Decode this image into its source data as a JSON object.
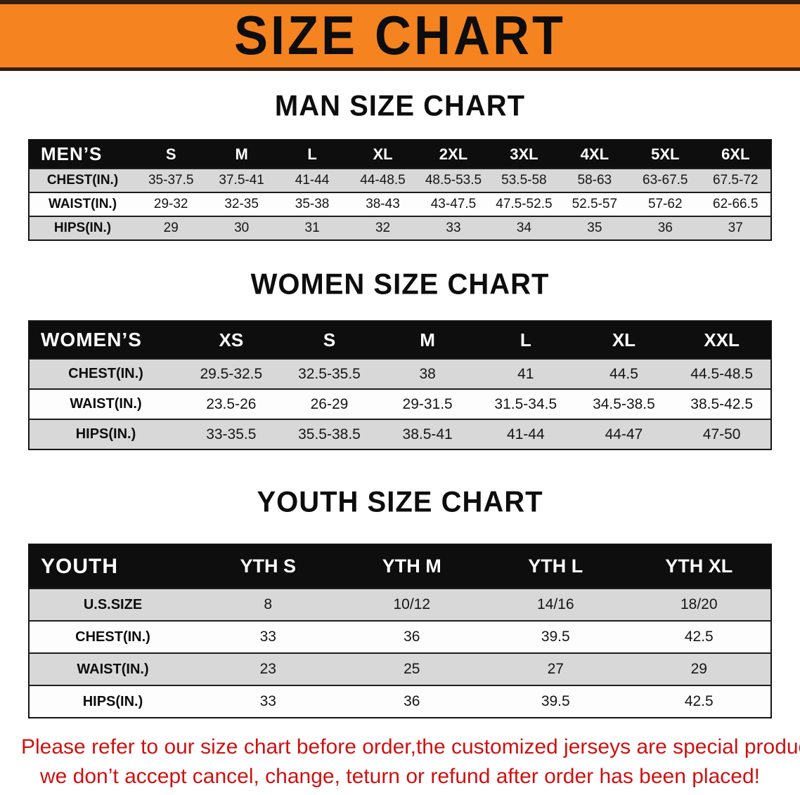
{
  "banner": {
    "title": "SIZE CHART",
    "bg_color": "#f5831f",
    "border_color": "#32200c",
    "text_color": "#0d0d0d"
  },
  "colors": {
    "table_header_bg": "#0e0e0e",
    "table_header_text": "#ffffff",
    "stripe_row_bg": "#d8d8d8",
    "plain_row_bg": "#fdfdfd",
    "disclaimer_text": "#cf1110"
  },
  "sections": [
    {
      "kind": "men",
      "heading": "MAN SIZE CHART",
      "table": {
        "header_label": "MEN’S",
        "columns": [
          "S",
          "M",
          "L",
          "XL",
          "2XL",
          "3XL",
          "4XL",
          "5XL",
          "6XL"
        ],
        "rows": [
          {
            "label": "CHEST(IN.)",
            "values": [
              "35-37.5",
              "37.5-41",
              "41-44",
              "44-48.5",
              "48.5-53.5",
              "53.5-58",
              "58-63",
              "63-67.5",
              "67.5-72"
            ]
          },
          {
            "label": "WAIST(IN.)",
            "values": [
              "29-32",
              "32-35",
              "35-38",
              "38-43",
              "43-47.5",
              "47.5-52.5",
              "52.5-57",
              "57-62",
              "62-66.5"
            ]
          },
          {
            "label": "HIPS(IN.)",
            "values": [
              "29",
              "30",
              "31",
              "32",
              "33",
              "34",
              "35",
              "36",
              "37"
            ]
          }
        ]
      }
    },
    {
      "kind": "women",
      "heading": "WOMEN SIZE CHART",
      "table": {
        "header_label": "WOMEN’S",
        "columns": [
          "XS",
          "S",
          "M",
          "L",
          "XL",
          "XXL"
        ],
        "rows": [
          {
            "label": "CHEST(IN.)",
            "values": [
              "29.5-32.5",
              "32.5-35.5",
              "38",
              "41",
              "44.5",
              "44.5-48.5"
            ]
          },
          {
            "label": "WAIST(IN.)",
            "values": [
              "23.5-26",
              "26-29",
              "29-31.5",
              "31.5-34.5",
              "34.5-38.5",
              "38.5-42.5"
            ]
          },
          {
            "label": "HIPS(IN.)",
            "values": [
              "33-35.5",
              "35.5-38.5",
              "38.5-41",
              "41-44",
              "44-47",
              "47-50"
            ]
          }
        ]
      }
    },
    {
      "kind": "youth",
      "heading": "YOUTH SIZE CHART",
      "table": {
        "header_label": "YOUTH",
        "columns": [
          "YTH S",
          "YTH M",
          "YTH L",
          "YTH XL"
        ],
        "rows": [
          {
            "label": "U.S.SIZE",
            "values": [
              "8",
              "10/12",
              "14/16",
              "18/20"
            ]
          },
          {
            "label": "CHEST(IN.)",
            "values": [
              "33",
              "36",
              "39.5",
              "42.5"
            ]
          },
          {
            "label": "WAIST(IN.)",
            "values": [
              "23",
              "25",
              "27",
              "29"
            ]
          },
          {
            "label": "HIPS(IN.)",
            "values": [
              "33",
              "36",
              "39.5",
              "42.5"
            ]
          }
        ]
      }
    }
  ],
  "footer": {
    "line1": "Please refer to our size chart before order,the customized jerseys are special products,",
    "line2": "we don’t accept cancel, change, teturn or refund after order has been placed!"
  }
}
